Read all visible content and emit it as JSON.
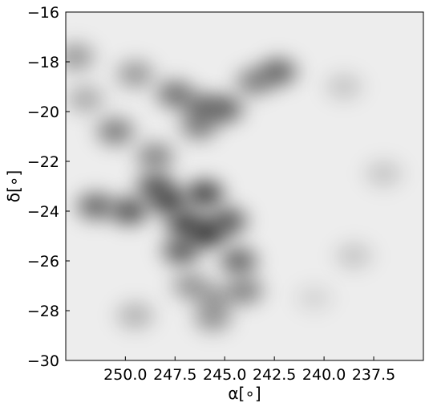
{
  "chart_data": {
    "type": "heatmap",
    "title": "",
    "xlabel": "α[∘]",
    "ylabel": "δ[∘]",
    "xlim": [
      253.0,
      235.0
    ],
    "ylim": [
      -30.0,
      -16.0
    ],
    "x_ticks": [
      250.0,
      247.5,
      245.0,
      242.5,
      240.0,
      237.5
    ],
    "x_tick_labels": [
      "250.0",
      "247.5",
      "245.0",
      "242.5",
      "240.0",
      "237.5"
    ],
    "y_ticks": [
      -16,
      -18,
      -20,
      -22,
      -24,
      -26,
      -28,
      -30
    ],
    "y_tick_labels": [
      "−16",
      "−18",
      "−20",
      "−22",
      "−24",
      "−26",
      "−28",
      "−30"
    ],
    "colormap": "gray_r",
    "grid": false,
    "legend": "none",
    "features": [
      {
        "ra": 249.5,
        "dec": -18.5,
        "intensity": 0.45
      },
      {
        "ra": 247.5,
        "dec": -19.3,
        "intensity": 0.65
      },
      {
        "ra": 246.2,
        "dec": -19.8,
        "intensity": 0.6
      },
      {
        "ra": 245.0,
        "dec": -19.9,
        "intensity": 0.7
      },
      {
        "ra": 243.5,
        "dec": -18.8,
        "intensity": 0.55
      },
      {
        "ra": 242.3,
        "dec": -18.4,
        "intensity": 0.7
      },
      {
        "ra": 246.3,
        "dec": -20.6,
        "intensity": 0.55
      },
      {
        "ra": 250.5,
        "dec": -20.8,
        "intensity": 0.6
      },
      {
        "ra": 248.5,
        "dec": -21.8,
        "intensity": 0.55
      },
      {
        "ra": 251.5,
        "dec": -23.8,
        "intensity": 0.7
      },
      {
        "ra": 249.8,
        "dec": -24.0,
        "intensity": 0.8
      },
      {
        "ra": 248.5,
        "dec": -23.0,
        "intensity": 0.75
      },
      {
        "ra": 247.8,
        "dec": -23.6,
        "intensity": 0.85
      },
      {
        "ra": 246.0,
        "dec": -23.3,
        "intensity": 0.9
      },
      {
        "ra": 247.0,
        "dec": -24.5,
        "intensity": 0.85
      },
      {
        "ra": 245.9,
        "dec": -24.9,
        "intensity": 0.95
      },
      {
        "ra": 247.2,
        "dec": -25.6,
        "intensity": 0.75
      },
      {
        "ra": 244.8,
        "dec": -24.4,
        "intensity": 0.75
      },
      {
        "ra": 244.3,
        "dec": -26.0,
        "intensity": 0.7
      },
      {
        "ra": 244.0,
        "dec": -27.2,
        "intensity": 0.55
      },
      {
        "ra": 245.5,
        "dec": -27.5,
        "intensity": 0.4
      },
      {
        "ra": 246.7,
        "dec": -27.0,
        "intensity": 0.45
      },
      {
        "ra": 245.6,
        "dec": -28.3,
        "intensity": 0.45
      },
      {
        "ra": 249.5,
        "dec": -28.2,
        "intensity": 0.3
      },
      {
        "ra": 252.5,
        "dec": -17.8,
        "intensity": 0.45
      },
      {
        "ra": 252.0,
        "dec": -19.5,
        "intensity": 0.35
      },
      {
        "ra": 239.0,
        "dec": -19.0,
        "intensity": 0.2
      },
      {
        "ra": 237.0,
        "dec": -22.5,
        "intensity": 0.2
      },
      {
        "ra": 238.5,
        "dec": -25.8,
        "intensity": 0.2
      },
      {
        "ra": 240.5,
        "dec": -27.5,
        "intensity": 0.12
      }
    ]
  }
}
